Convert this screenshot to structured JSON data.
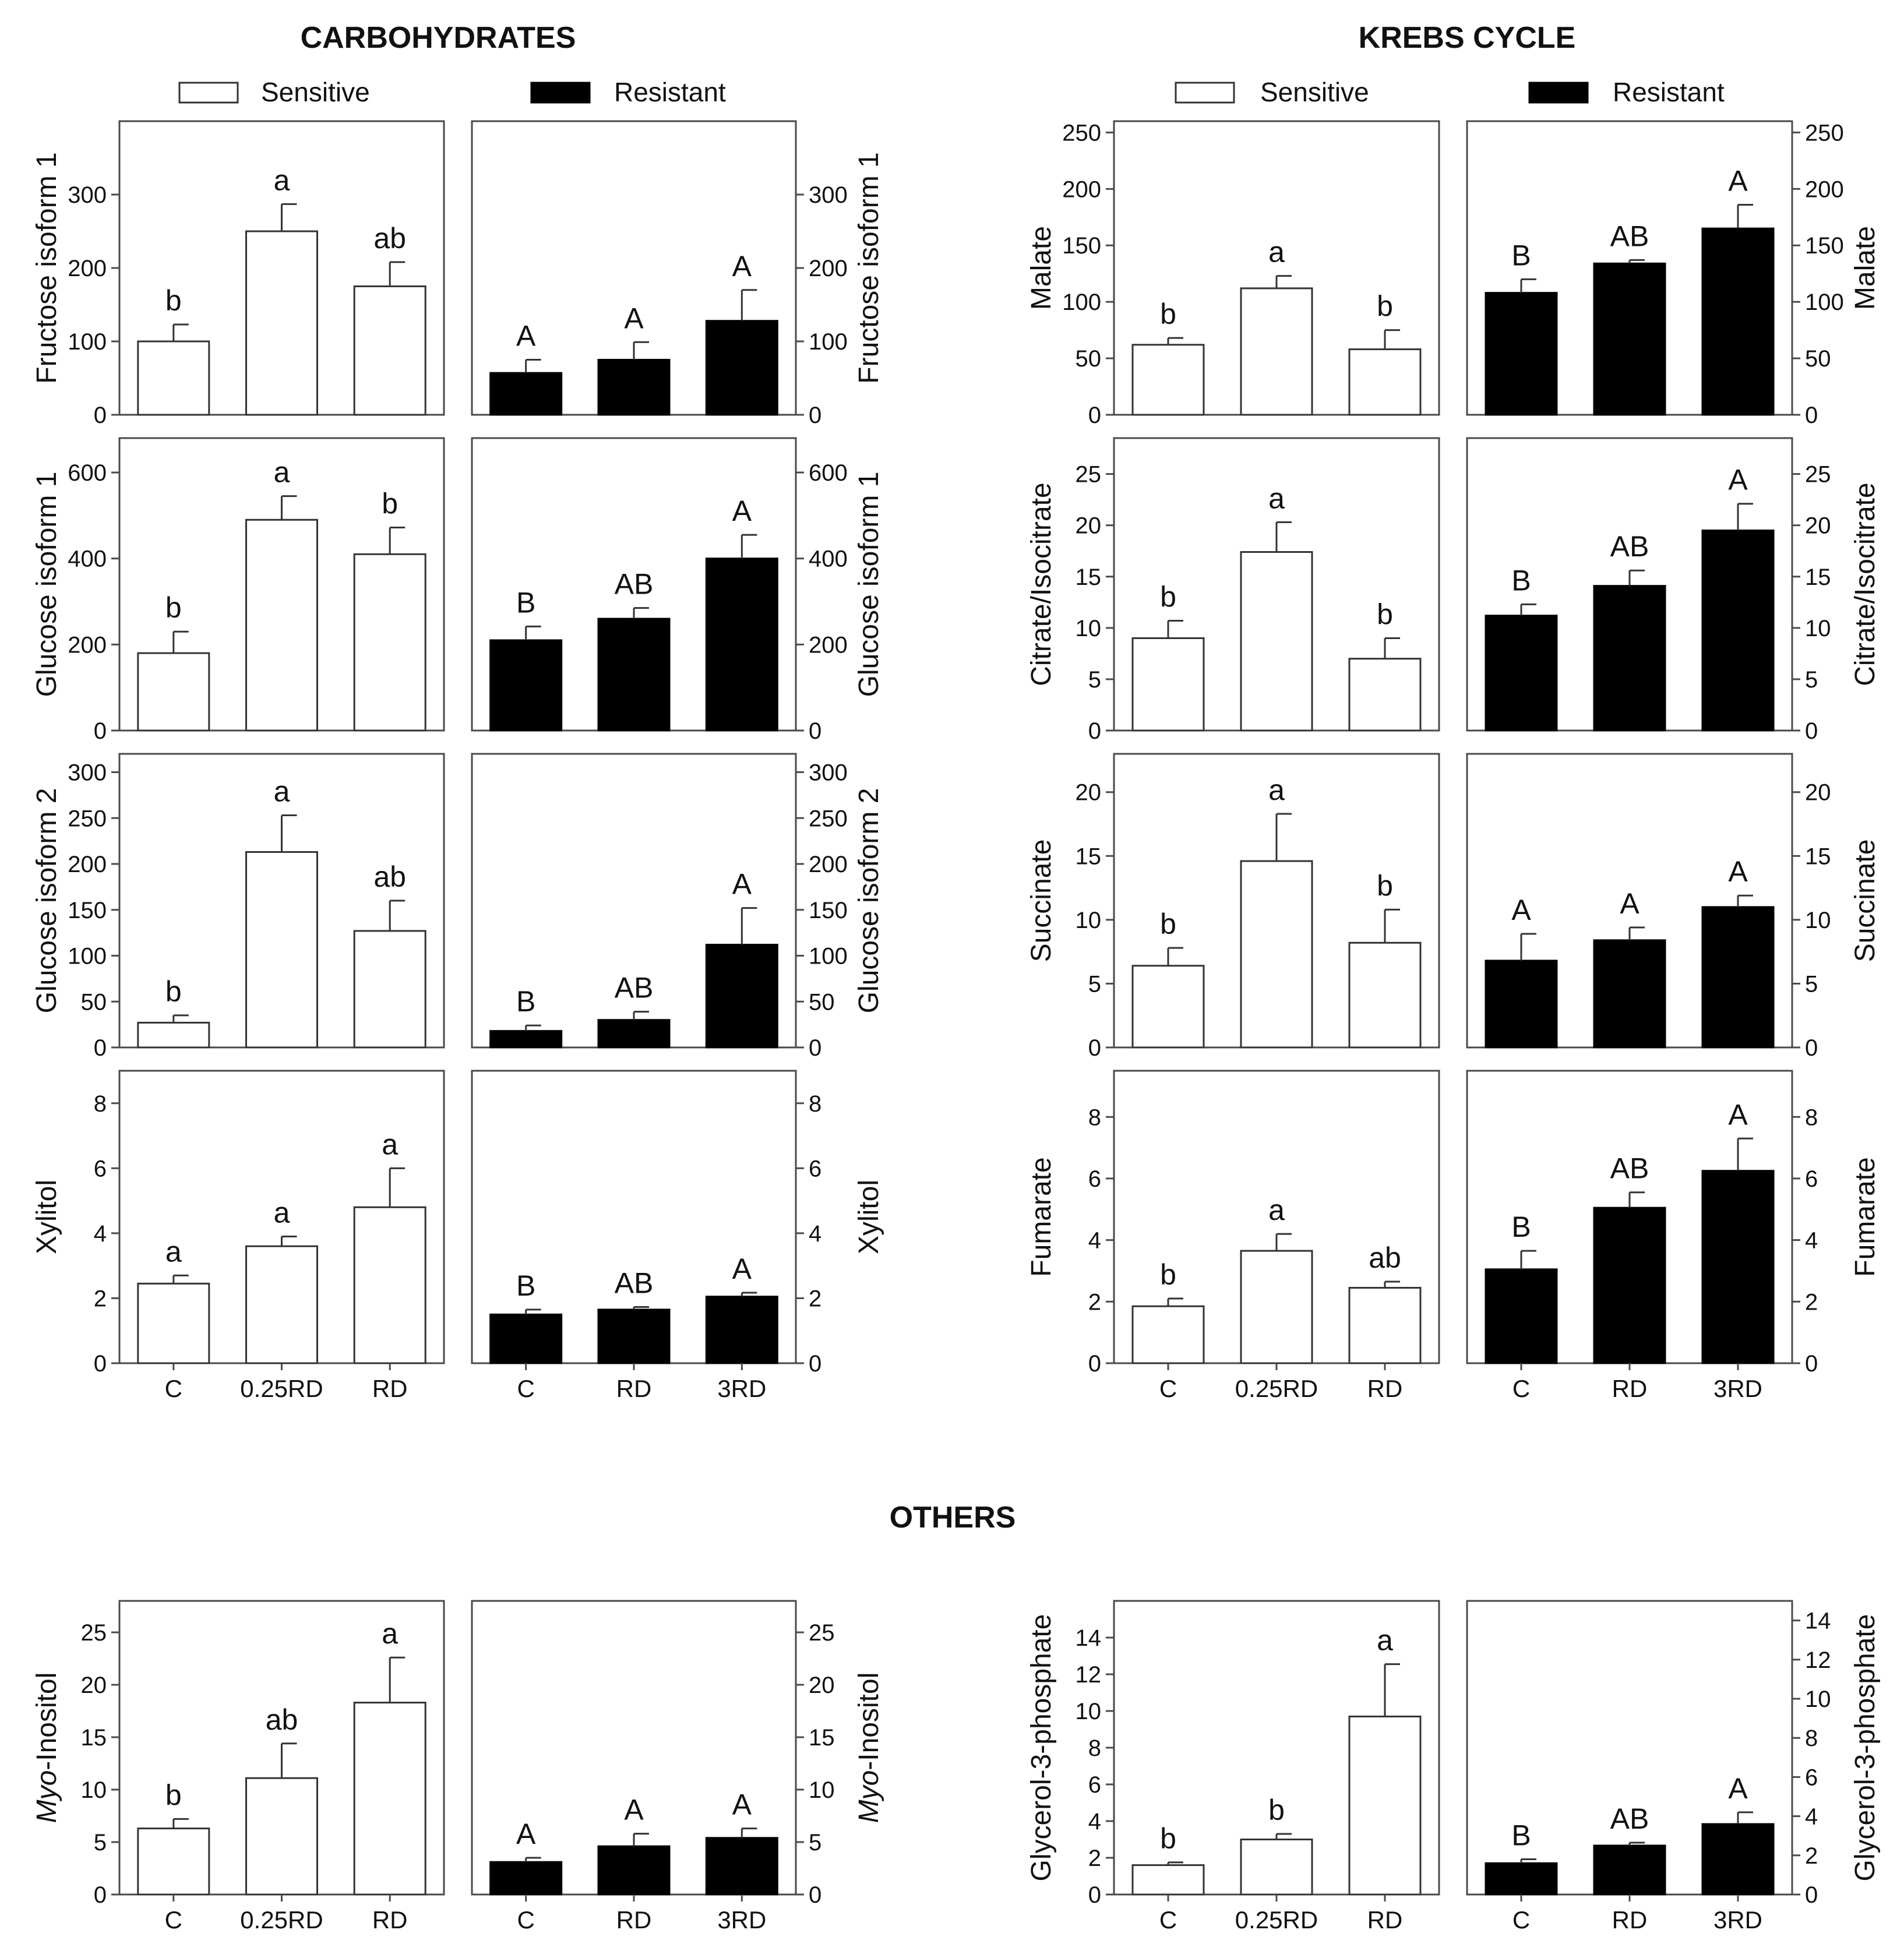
{
  "section_titles": {
    "carbohydrates": "CARBOHYDRATES",
    "krebs": "KREBS CYCLE",
    "others": "OTHERS"
  },
  "legend": {
    "sensitive": "Sensitive",
    "resistant": "Resistant"
  },
  "colors": {
    "sensitive_fill": "#ffffff",
    "resistant_fill": "#000000",
    "frame": "#4a4a4a",
    "text": "#111111"
  },
  "chart_data": [
    {
      "type": "bar",
      "title": "Fructose isoform 1",
      "ylabel": "Fructose isoform 1",
      "ylim": [
        0,
        400
      ],
      "yticks": [
        0,
        100,
        200,
        300
      ],
      "series": [
        {
          "name": "Sensitive",
          "categories": [
            "C",
            "0.25RD",
            "RD"
          ],
          "values": [
            100,
            250,
            175
          ],
          "errors": [
            23,
            37,
            33
          ],
          "letters": [
            "b",
            "a",
            "ab"
          ]
        },
        {
          "name": "Resistant",
          "categories": [
            "C",
            "RD",
            "3RD"
          ],
          "values": [
            57,
            75,
            128
          ],
          "errors": [
            18,
            24,
            42
          ],
          "letters": [
            "A",
            "A",
            "A"
          ]
        }
      ]
    },
    {
      "type": "bar",
      "title": "Glucose isoform 1",
      "ylabel": "Glucose isoform 1",
      "ylim": [
        0,
        680
      ],
      "yticks": [
        0,
        200,
        400,
        600
      ],
      "series": [
        {
          "name": "Sensitive",
          "categories": [
            "C",
            "0.25RD",
            "RD"
          ],
          "values": [
            180,
            490,
            410
          ],
          "errors": [
            50,
            55,
            62
          ],
          "letters": [
            "b",
            "a",
            "b"
          ]
        },
        {
          "name": "Resistant",
          "categories": [
            "C",
            "RD",
            "3RD"
          ],
          "values": [
            210,
            260,
            400
          ],
          "errors": [
            32,
            25,
            55
          ],
          "letters": [
            "B",
            "AB",
            "A"
          ]
        }
      ]
    },
    {
      "type": "bar",
      "title": "Glucose isoform 2",
      "ylabel": "Glucose isoform 2",
      "ylim": [
        0,
        320
      ],
      "yticks": [
        0,
        50,
        100,
        150,
        200,
        250,
        300
      ],
      "series": [
        {
          "name": "Sensitive",
          "categories": [
            "C",
            "0.25RD",
            "RD"
          ],
          "values": [
            27,
            213,
            127
          ],
          "errors": [
            8,
            40,
            33
          ],
          "letters": [
            "b",
            "a",
            "ab"
          ]
        },
        {
          "name": "Resistant",
          "categories": [
            "C",
            "RD",
            "3RD"
          ],
          "values": [
            18,
            30,
            112
          ],
          "errors": [
            6,
            9,
            40
          ],
          "letters": [
            "B",
            "AB",
            "A"
          ]
        }
      ]
    },
    {
      "type": "bar",
      "title": "Xylitol",
      "ylabel": "Xylitol",
      "ylim": [
        0,
        9
      ],
      "yticks": [
        0,
        2,
        4,
        6,
        8
      ],
      "series": [
        {
          "name": "Sensitive",
          "categories": [
            "C",
            "0.25RD",
            "RD"
          ],
          "values": [
            2.45,
            3.6,
            4.8
          ],
          "errors": [
            0.25,
            0.3,
            1.2
          ],
          "letters": [
            "a",
            "a",
            "a"
          ]
        },
        {
          "name": "Resistant",
          "categories": [
            "C",
            "RD",
            "3RD"
          ],
          "values": [
            1.5,
            1.65,
            2.05
          ],
          "errors": [
            0.15,
            0.08,
            0.12
          ],
          "letters": [
            "B",
            "AB",
            "A"
          ]
        }
      ]
    },
    {
      "type": "bar",
      "title": "Malate",
      "ylabel": "Malate",
      "ylim": [
        0,
        260
      ],
      "yticks": [
        0,
        50,
        100,
        150,
        200,
        250
      ],
      "series": [
        {
          "name": "Sensitive",
          "categories": [
            "C",
            "0.25RD",
            "RD"
          ],
          "values": [
            62,
            112,
            58
          ],
          "errors": [
            6,
            11,
            17
          ],
          "letters": [
            "b",
            "a",
            "b"
          ]
        },
        {
          "name": "Resistant",
          "categories": [
            "C",
            "RD",
            "3RD"
          ],
          "values": [
            108,
            134,
            165
          ],
          "errors": [
            12,
            3,
            21
          ],
          "letters": [
            "B",
            "AB",
            "A"
          ]
        }
      ]
    },
    {
      "type": "bar",
      "title": "Citrate/Isocitrate",
      "ylabel": "Citrate/Isocitrate",
      "ylim": [
        0,
        28.5
      ],
      "yticks": [
        0,
        5,
        10,
        15,
        20,
        25
      ],
      "series": [
        {
          "name": "Sensitive",
          "categories": [
            "C",
            "0.25RD",
            "RD"
          ],
          "values": [
            9,
            17.4,
            7
          ],
          "errors": [
            1.7,
            2.9,
            2.0
          ],
          "letters": [
            "b",
            "a",
            "b"
          ]
        },
        {
          "name": "Resistant",
          "categories": [
            "C",
            "RD",
            "3RD"
          ],
          "values": [
            11.2,
            14.1,
            19.5
          ],
          "errors": [
            1.1,
            1.5,
            2.6
          ],
          "letters": [
            "B",
            "AB",
            "A"
          ]
        }
      ]
    },
    {
      "type": "bar",
      "title": "Succinate",
      "ylabel": "Succinate",
      "ylim": [
        0,
        23
      ],
      "yticks": [
        0,
        5,
        10,
        15,
        20
      ],
      "series": [
        {
          "name": "Sensitive",
          "categories": [
            "C",
            "0.25RD",
            "RD"
          ],
          "values": [
            6.4,
            14.6,
            8.2
          ],
          "errors": [
            1.4,
            3.7,
            2.6
          ],
          "letters": [
            "b",
            "a",
            "b"
          ]
        },
        {
          "name": "Resistant",
          "categories": [
            "C",
            "RD",
            "3RD"
          ],
          "values": [
            6.8,
            8.4,
            11
          ],
          "errors": [
            2.1,
            1.0,
            0.9
          ],
          "letters": [
            "A",
            "A",
            "A"
          ]
        }
      ]
    },
    {
      "type": "bar",
      "title": "Fumarate",
      "ylabel": "Fumarate",
      "ylim": [
        0,
        9.5
      ],
      "yticks": [
        0,
        2,
        4,
        6,
        8
      ],
      "series": [
        {
          "name": "Sensitive",
          "categories": [
            "C",
            "0.25RD",
            "RD"
          ],
          "values": [
            1.85,
            3.65,
            2.45
          ],
          "errors": [
            0.25,
            0.55,
            0.2
          ],
          "letters": [
            "b",
            "a",
            "ab"
          ]
        },
        {
          "name": "Resistant",
          "categories": [
            "C",
            "RD",
            "3RD"
          ],
          "values": [
            3.05,
            5.05,
            6.25
          ],
          "errors": [
            0.6,
            0.5,
            1.05
          ],
          "letters": [
            "B",
            "AB",
            "A"
          ]
        }
      ]
    },
    {
      "type": "bar",
      "title": "Myo-Inositol",
      "ylabel": "Myo-Inositol",
      "ylabel_italic": "Myo",
      "ylabel_rest": "-Inositol",
      "ylim": [
        0,
        28
      ],
      "yticks": [
        0,
        5,
        10,
        15,
        20,
        25
      ],
      "series": [
        {
          "name": "Sensitive",
          "categories": [
            "C",
            "0.25RD",
            "RD"
          ],
          "values": [
            6.3,
            11.1,
            18.3
          ],
          "errors": [
            0.9,
            3.3,
            4.3
          ],
          "letters": [
            "b",
            "ab",
            "a"
          ]
        },
        {
          "name": "Resistant",
          "categories": [
            "C",
            "RD",
            "3RD"
          ],
          "values": [
            3.1,
            4.6,
            5.4
          ],
          "errors": [
            0.4,
            1.2,
            0.9
          ],
          "letters": [
            "A",
            "A",
            "A"
          ]
        }
      ]
    },
    {
      "type": "bar",
      "title": "Glycerol-3-phosphate",
      "ylabel": "Glycerol-3-phosphate",
      "ylim_left": [
        0,
        16
      ],
      "ylim_right": [
        0,
        15
      ],
      "yticks_left": [
        0,
        2,
        4,
        6,
        8,
        10,
        12,
        14
      ],
      "yticks_right": [
        0,
        2,
        4,
        6,
        8,
        10,
        12,
        14
      ],
      "series": [
        {
          "name": "Sensitive",
          "categories": [
            "C",
            "0.25RD",
            "RD"
          ],
          "values": [
            1.6,
            3.0,
            9.7
          ],
          "errors": [
            0.15,
            0.3,
            2.85
          ],
          "letters": [
            "b",
            "b",
            "a"
          ]
        },
        {
          "name": "Resistant",
          "categories": [
            "C",
            "RD",
            "3RD"
          ],
          "values": [
            1.6,
            2.5,
            3.6
          ],
          "errors": [
            0.2,
            0.15,
            0.6
          ],
          "letters": [
            "B",
            "AB",
            "A"
          ]
        }
      ]
    }
  ]
}
